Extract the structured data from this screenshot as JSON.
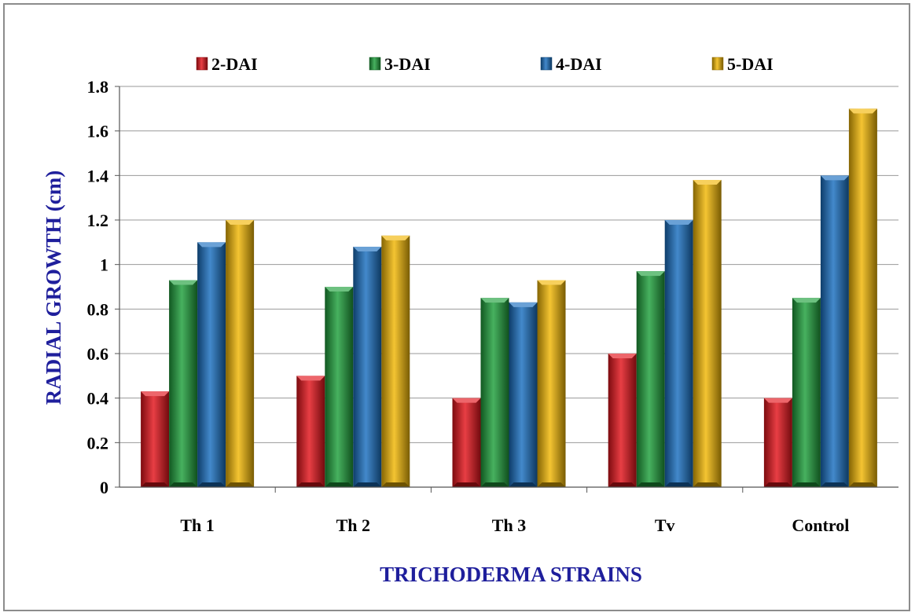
{
  "chart_data": {
    "type": "bar",
    "title": "",
    "xlabel": "TRICHODERMA STRAINS",
    "ylabel": "RADIAL GROWTH  (cm)",
    "categories": [
      "Th 1",
      "Th 2",
      "Th 3",
      "Tv",
      "Control"
    ],
    "series": [
      {
        "name": "2-DAI",
        "color": "#e3141b",
        "values": [
          0.43,
          0.5,
          0.4,
          0.6,
          0.4
        ]
      },
      {
        "name": "3-DAI",
        "color": "#1fa03c",
        "values": [
          0.93,
          0.9,
          0.85,
          0.97,
          0.85
        ]
      },
      {
        "name": "4-DAI",
        "color": "#1a6fc0",
        "values": [
          1.1,
          1.08,
          0.83,
          1.2,
          1.4
        ]
      },
      {
        "name": "5-DAI",
        "color": "#f2b705",
        "values": [
          1.2,
          1.13,
          0.93,
          1.38,
          1.7
        ]
      }
    ],
    "ylim": [
      0,
      1.8
    ],
    "yticks": [
      "0",
      "0.2",
      "0.4",
      "0.6",
      "0.8",
      "1",
      "1.2",
      "1.4",
      "1.6",
      "1.8"
    ],
    "grid": true,
    "legend_position": "top"
  }
}
